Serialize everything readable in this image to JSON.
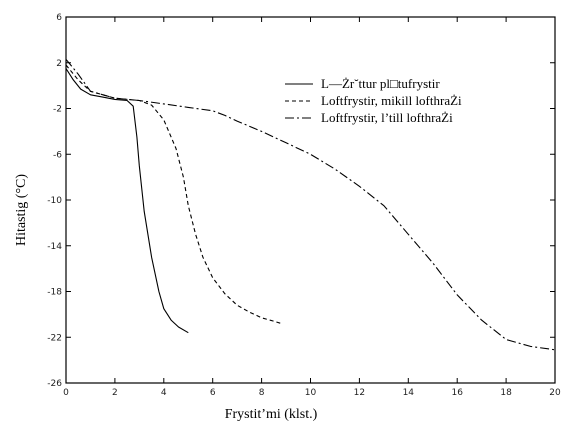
{
  "chart_data": {
    "type": "line",
    "title": "",
    "xlabel": "Frystit’mi (klst.)",
    "ylabel": "Hitastig (°C)",
    "xlim": [
      0,
      20
    ],
    "ylim": [
      -26,
      6
    ],
    "x_ticks": [
      0,
      2,
      4,
      6,
      8,
      10,
      12,
      14,
      16,
      18,
      20
    ],
    "x_tick_labels": [
      "0",
      "2",
      "4",
      "6",
      "8",
      "10",
      "12",
      "14",
      "16",
      "18",
      "20"
    ],
    "y_ticks": [
      6,
      2,
      -2,
      -6,
      -10,
      -14,
      -18,
      -22,
      -26
    ],
    "y_tick_labels": [
      "6",
      "2",
      "-2",
      "-6",
      "-10",
      "-14",
      "-18",
      "-22",
      "-26"
    ],
    "grid": false,
    "legend_position": "top-right",
    "series": [
      {
        "name": "L—Żr˘ttur pl□tufrystir",
        "style": "solid",
        "x": [
          0,
          0.3,
          0.6,
          1.0,
          1.5,
          2.0,
          2.5,
          2.75,
          2.9,
          3.0,
          3.2,
          3.5,
          3.8,
          4.0,
          4.3,
          4.6,
          5.0
        ],
        "y": [
          1.5,
          0.5,
          -0.3,
          -0.8,
          -1.0,
          -1.2,
          -1.3,
          -1.8,
          -4.5,
          -7.0,
          -11.0,
          -15.0,
          -18.0,
          -19.5,
          -20.5,
          -21.1,
          -21.6
        ]
      },
      {
        "name": "Loftfrystir, mikill lofthraŻi",
        "style": "dashed",
        "x": [
          0,
          0.5,
          1.0,
          2.0,
          3.0,
          3.5,
          4.0,
          4.5,
          4.8,
          5.0,
          5.3,
          5.6,
          6.0,
          6.5,
          7.0,
          7.5,
          8.0,
          8.5,
          8.8
        ],
        "y": [
          1.8,
          0.5,
          -0.5,
          -1.1,
          -1.3,
          -1.7,
          -3.0,
          -5.5,
          -8.0,
          -10.5,
          -13.0,
          -15.0,
          -16.8,
          -18.2,
          -19.2,
          -19.8,
          -20.3,
          -20.6,
          -20.8
        ]
      },
      {
        "name": "Loftfrystir, l’till lofthraŻi",
        "style": "dashdot",
        "x": [
          0,
          0.5,
          1.0,
          2.0,
          3.0,
          4.0,
          5.0,
          6.0,
          6.5,
          7.0,
          8.0,
          9.0,
          10.0,
          11.0,
          12.0,
          13.0,
          14.0,
          15.0,
          16.0,
          17.0,
          18.0,
          19.0,
          20.0
        ],
        "y": [
          2.3,
          1.0,
          -0.5,
          -1.1,
          -1.3,
          -1.6,
          -1.9,
          -2.2,
          -2.6,
          -3.1,
          -4.0,
          -5.0,
          -6.0,
          -7.3,
          -8.8,
          -10.5,
          -13.0,
          -15.5,
          -18.3,
          -20.5,
          -22.2,
          -22.8,
          -23.1
        ]
      }
    ]
  }
}
